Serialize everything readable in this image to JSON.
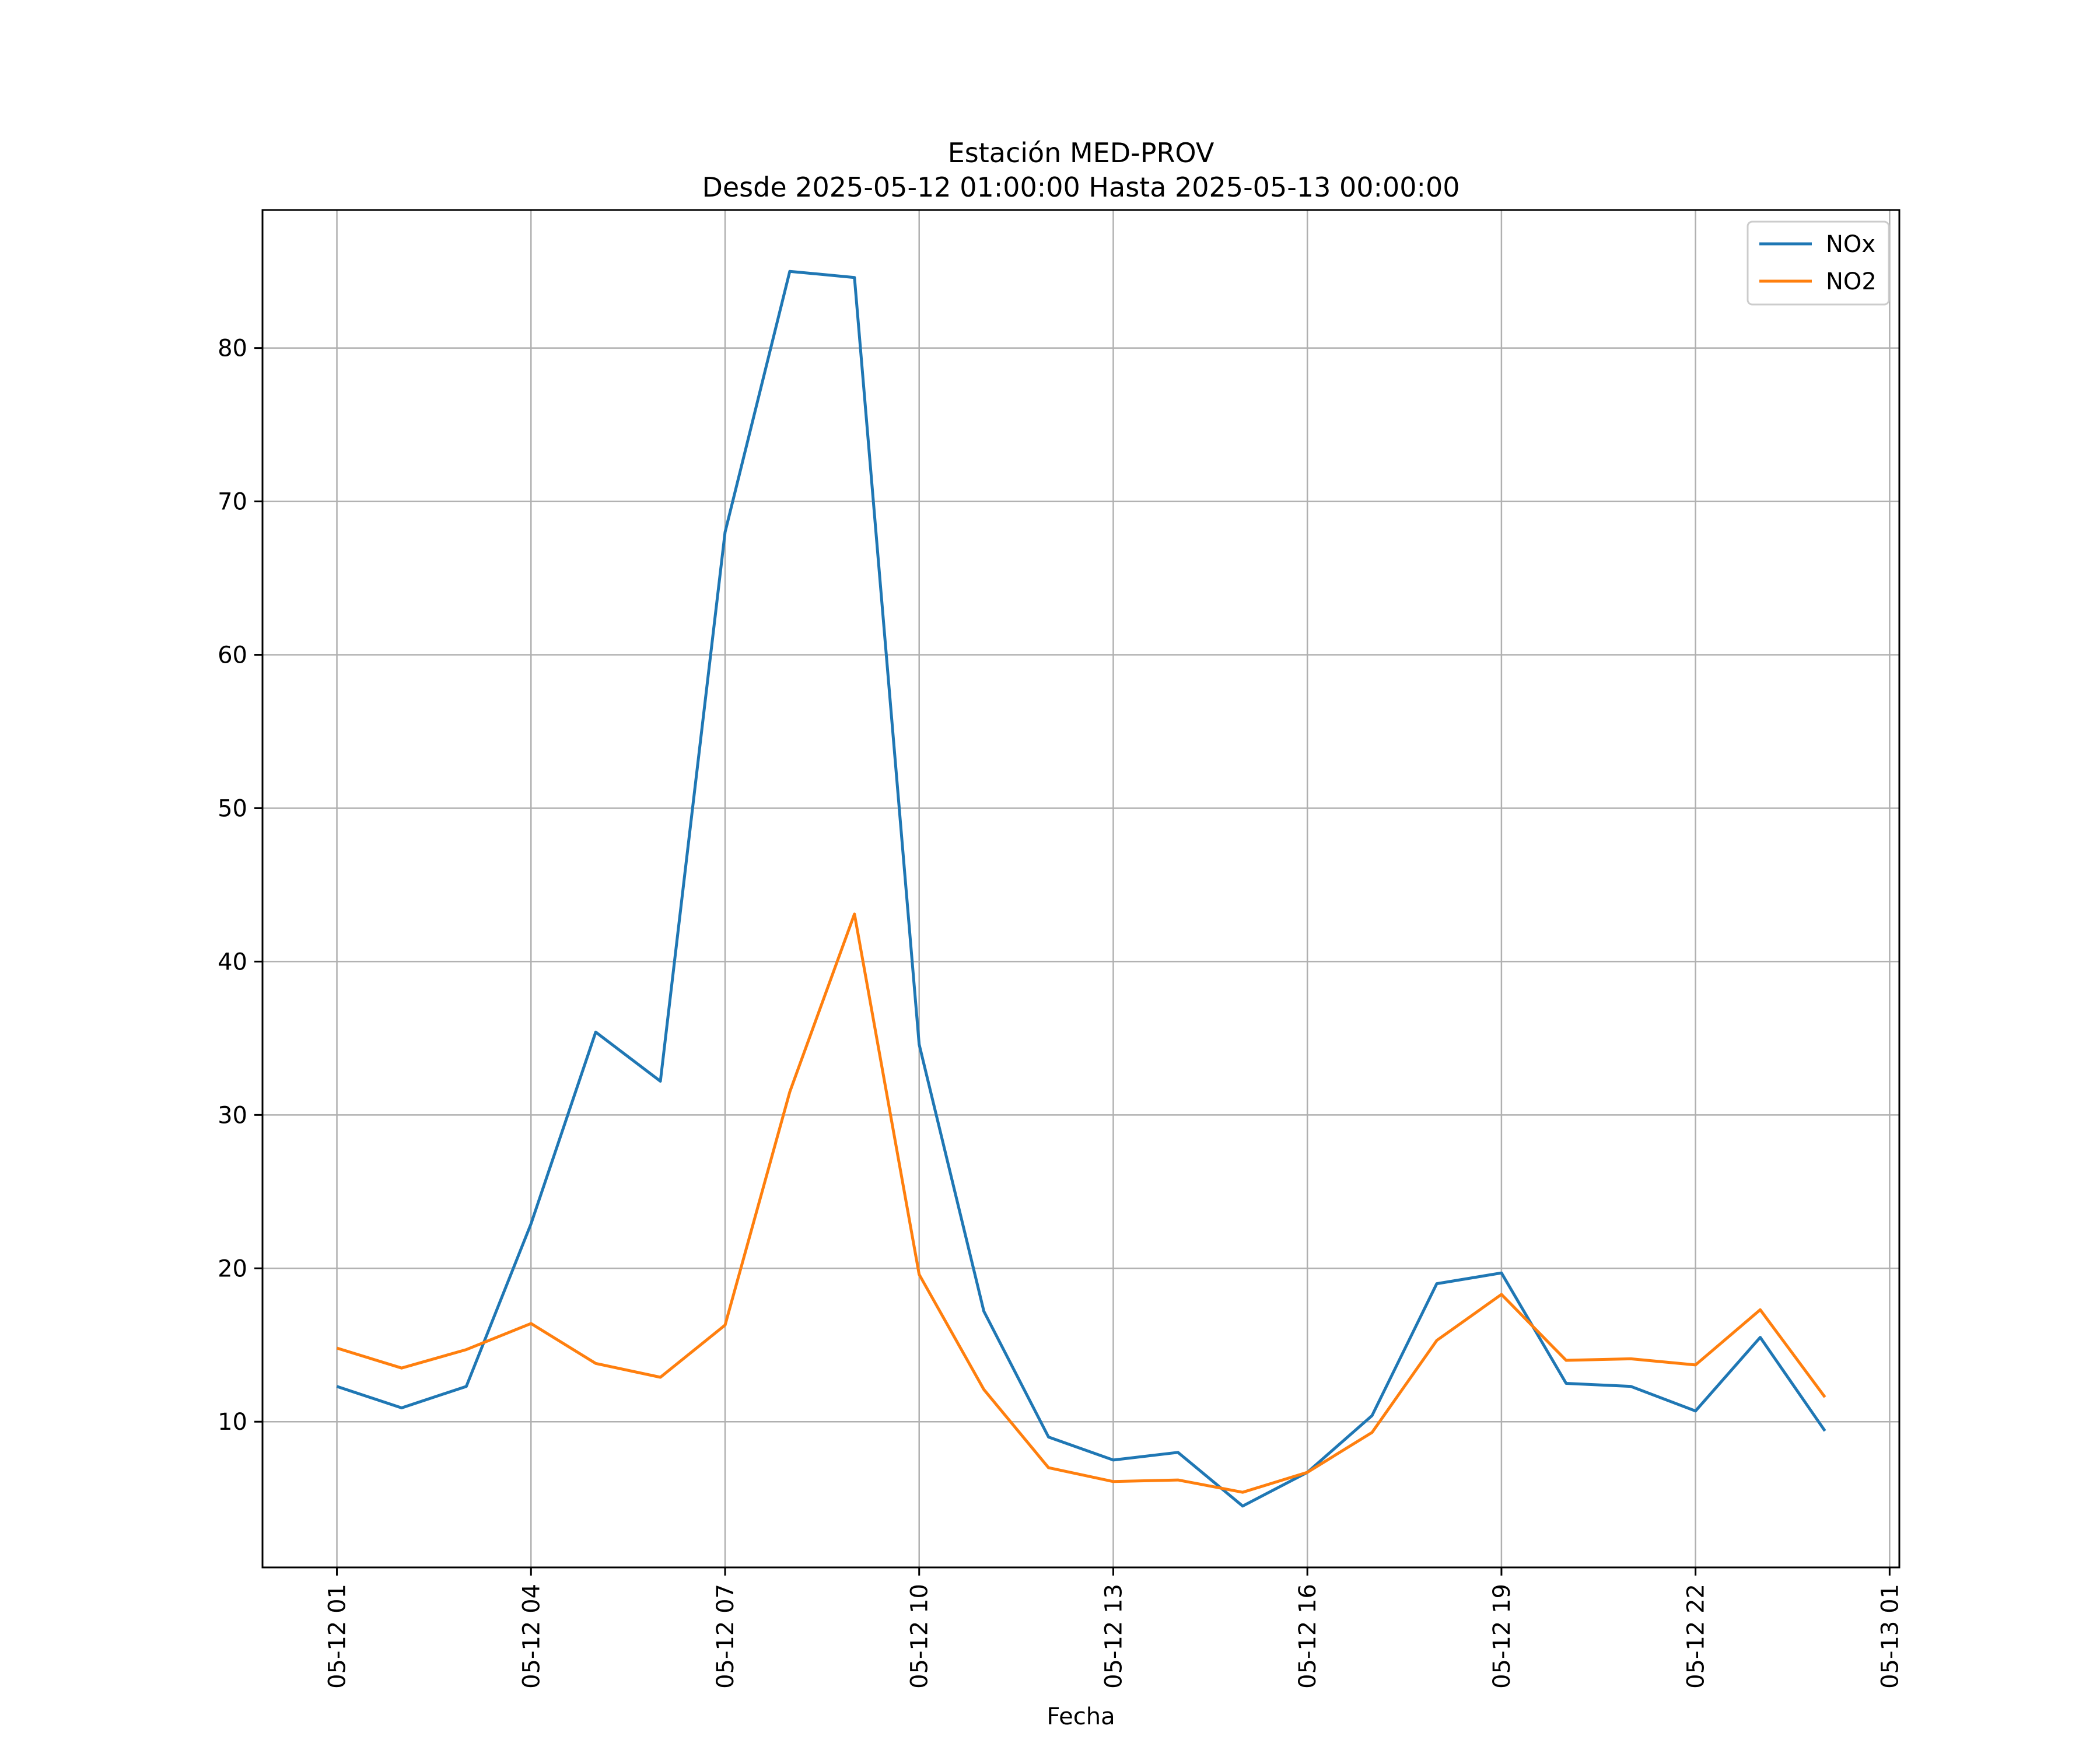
{
  "chart_data": {
    "type": "line",
    "title": "Estación MED-PROV",
    "subtitle": "Desde 2025-05-12 01:00:00 Hasta 2025-05-13 00:00:00",
    "xlabel": "Fecha",
    "ylabel": "",
    "x": [
      "2025-05-12 01:00",
      "2025-05-12 02:00",
      "2025-05-12 03:00",
      "2025-05-12 04:00",
      "2025-05-12 05:00",
      "2025-05-12 06:00",
      "2025-05-12 07:00",
      "2025-05-12 08:00",
      "2025-05-12 09:00",
      "2025-05-12 10:00",
      "2025-05-12 11:00",
      "2025-05-12 12:00",
      "2025-05-12 13:00",
      "2025-05-12 14:00",
      "2025-05-12 15:00",
      "2025-05-12 16:00",
      "2025-05-12 17:00",
      "2025-05-12 18:00",
      "2025-05-12 19:00",
      "2025-05-12 20:00",
      "2025-05-12 21:00",
      "2025-05-12 22:00",
      "2025-05-12 23:00",
      "2025-05-13 00:00"
    ],
    "series": [
      {
        "name": "NOx",
        "color": "#1f77b4",
        "values": [
          12.3,
          10.9,
          12.3,
          22.9,
          35.4,
          32.2,
          68.0,
          85.0,
          84.6,
          34.6,
          17.2,
          9.0,
          7.5,
          8.0,
          4.5,
          6.7,
          10.4,
          19.0,
          19.7,
          12.5,
          12.3,
          10.7,
          15.5,
          9.4
        ]
      },
      {
        "name": "NO2",
        "color": "#ff7f0e",
        "values": [
          14.8,
          13.5,
          14.7,
          16.4,
          13.8,
          12.9,
          16.3,
          31.5,
          43.1,
          19.6,
          12.1,
          7.0,
          6.1,
          6.2,
          5.4,
          6.7,
          9.3,
          15.3,
          18.3,
          14.0,
          14.1,
          13.7,
          17.3,
          11.6
        ]
      }
    ],
    "xticks": [
      "05-12 01",
      "05-12 04",
      "05-12 07",
      "05-12 10",
      "05-12 13",
      "05-12 16",
      "05-12 19",
      "05-12 22",
      "05-13 01"
    ],
    "yticks": [
      10,
      20,
      30,
      40,
      50,
      60,
      70,
      80
    ],
    "ylim": [
      0.5,
      89.0
    ],
    "xlim": [
      "2025-05-11 23:51",
      "2025-05-13 01:09"
    ],
    "grid": true,
    "legend": "top-right"
  }
}
